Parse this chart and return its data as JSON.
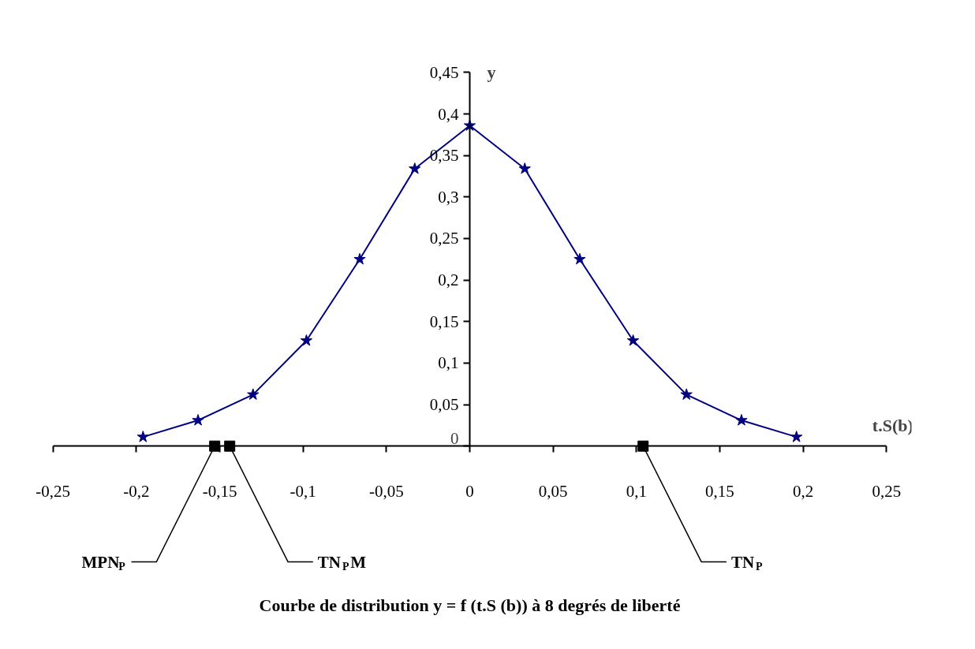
{
  "chart_data": {
    "type": "line",
    "title": "Courbe de distribution y = f (t.S (b)) à 8 degrés de liberté",
    "xlabel": "t.S(b)",
    "ylabel": "y",
    "xlim": [
      -0.25,
      0.25
    ],
    "xticks": [
      {
        "value": -0.25,
        "label": "-0,25"
      },
      {
        "value": -0.2,
        "label": "-0,2"
      },
      {
        "value": -0.15,
        "label": "-0,15"
      },
      {
        "value": -0.1,
        "label": "-0,1"
      },
      {
        "value": -0.05,
        "label": "-0,05"
      },
      0,
      {
        "value": 0.05,
        "label": "0,05"
      },
      {
        "value": 0.1,
        "label": "0,1"
      },
      {
        "value": 0.15,
        "label": "0,15"
      },
      {
        "value": 0.2,
        "label": "0,2"
      },
      {
        "value": 0.25,
        "label": "0,25"
      }
    ],
    "ylim": [
      0,
      0.45
    ],
    "yticks": [
      0,
      {
        "value": 0.05,
        "label": "0,05"
      },
      {
        "value": 0.1,
        "label": "0,1"
      },
      {
        "value": 0.15,
        "label": "0,15"
      },
      {
        "value": 0.2,
        "label": "0,2"
      },
      {
        "value": 0.25,
        "label": "0,25"
      },
      {
        "value": 0.3,
        "label": "0,3"
      },
      {
        "value": 0.35,
        "label": "0,35"
      },
      {
        "value": 0.4,
        "label": "0,4"
      },
      {
        "value": 0.45,
        "label": "0,45"
      }
    ],
    "series": [
      {
        "color": "#000080",
        "marker": "star",
        "line_style": "solid",
        "x": [
          -0.196,
          -0.163,
          -0.13,
          -0.098,
          -0.066,
          -0.033,
          0,
          0.033,
          0.066,
          0.098,
          0.13,
          0.163,
          0.196
        ],
        "values": [
          0.011,
          0.031,
          0.062,
          0.127,
          0.225,
          0.334,
          0.386,
          0.334,
          0.225,
          0.127,
          0.062,
          0.031,
          0.011
        ]
      },
      {
        "type": "scatter",
        "color": "#000000",
        "marker": "square",
        "x": [
          -0.153,
          -0.144,
          0.104
        ],
        "values": [
          0,
          0,
          0
        ]
      }
    ],
    "annotations": [
      {
        "text": "MPN$_{P}$",
        "x": -0.153,
        "y": 0
      },
      {
        "text": "TN$_{P}$M",
        "x": -0.144,
        "y": 0
      },
      {
        "text": "TN$_{P}$",
        "x": 0.104,
        "y": 0
      }
    ]
  }
}
